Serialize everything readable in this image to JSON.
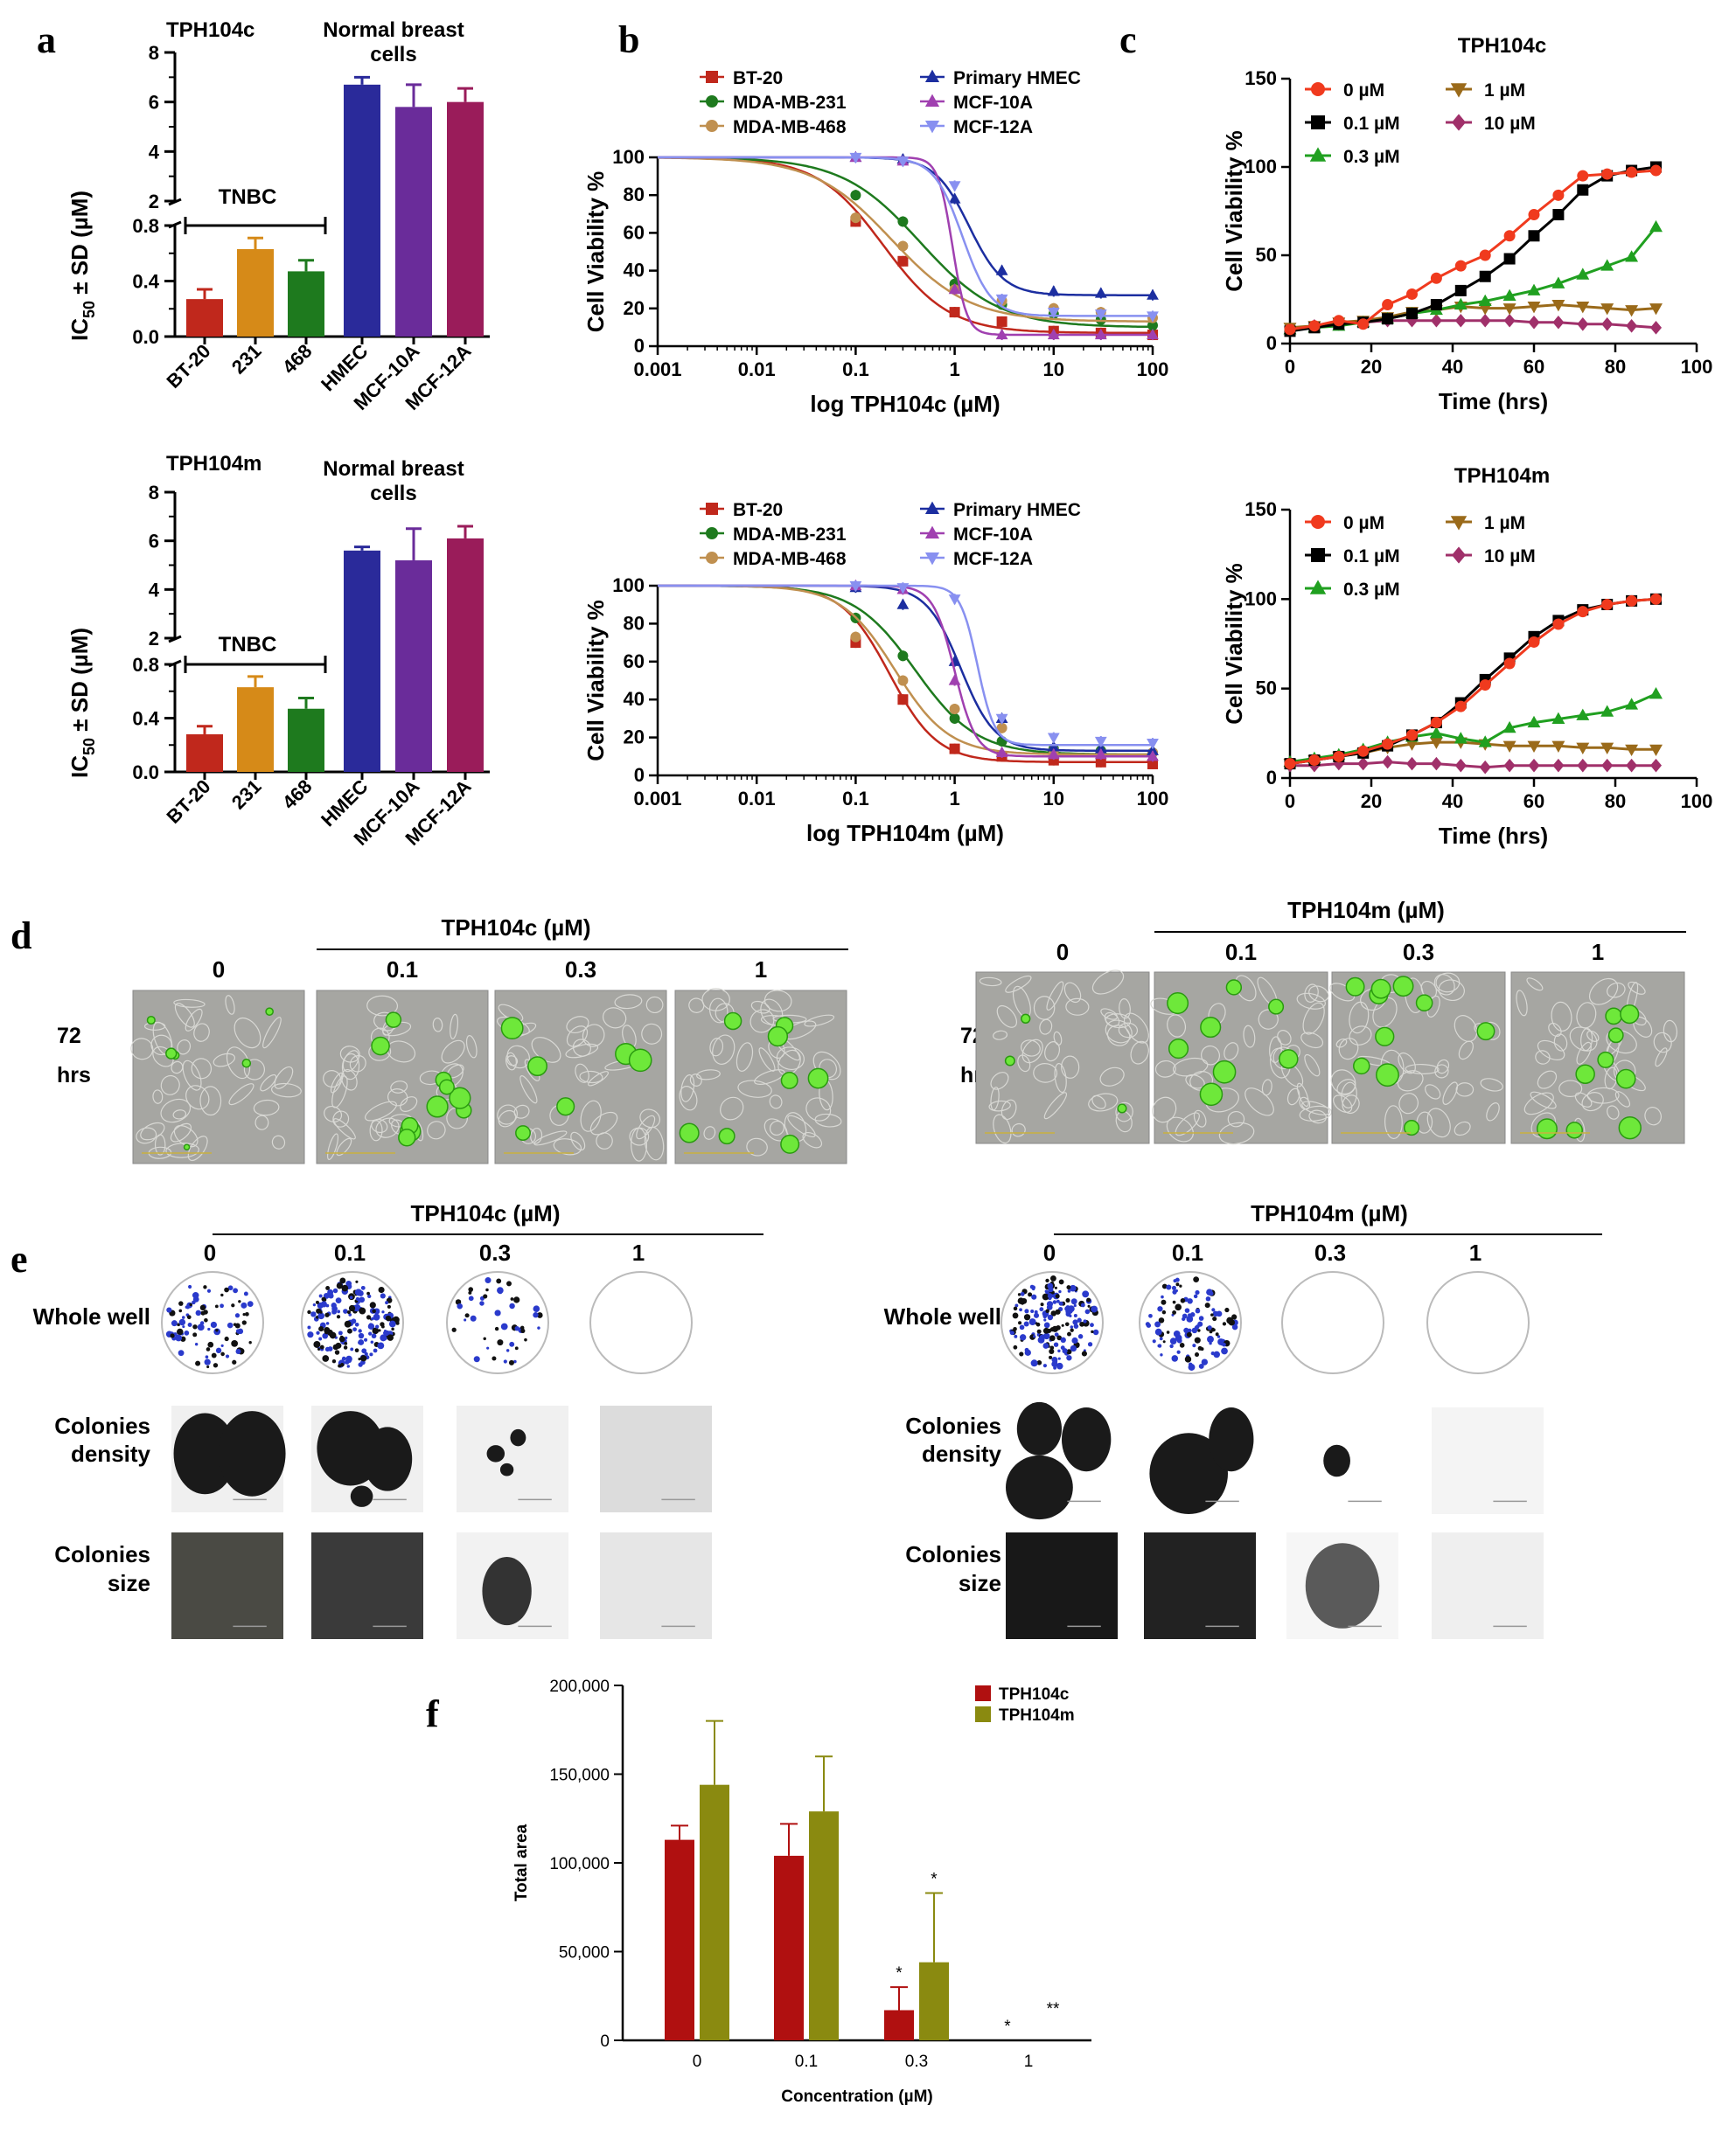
{
  "panels": {
    "a": "a",
    "b": "b",
    "c": "c",
    "d": "d",
    "e": "e",
    "f": "f"
  },
  "panel_a": {
    "ylabel": "IC50 ± SD (µM)",
    "ylabel_main": "IC",
    "ylabel_sub": "50",
    "ylabel_rest": " ± SD (µM)",
    "tnbc_label": "TNBC",
    "normal_label_1": "Normal breast",
    "normal_label_2": "cells"
  },
  "panel_b": {
    "ylabel": "Cell Viability %",
    "series_names": [
      "BT-20",
      "MDA-MB-231",
      "MDA-MB-468",
      "Primary HMEC",
      "MCF-10A",
      "MCF-12A"
    ]
  },
  "panel_c": {
    "ylabel": "Cell Viability %",
    "xlabel": "Time (hrs)",
    "legend": [
      "0 µM",
      "0.1 µM",
      "0.3 µM",
      "1 µM",
      "10 µM"
    ]
  },
  "panel_d": {
    "row_label_1": "72",
    "row_label_2": "hrs",
    "left_title": "TPH104c (µM)",
    "right_title": "TPH104m (µM)",
    "concentrations": [
      "0",
      "0.1",
      "0.3",
      "1"
    ]
  },
  "panel_e": {
    "left_title": "TPH104c (µM)",
    "right_title": "TPH104m (µM)",
    "concentrations": [
      "0",
      "0.1",
      "0.3",
      "1"
    ],
    "row_labels": [
      [
        "Whole well"
      ],
      [
        "Colonies",
        "density"
      ],
      [
        "Colonies",
        "size"
      ]
    ]
  },
  "colors": {
    "bt20": "#c0281c",
    "mda231": "#1e7a1e",
    "mda468": "#c09050",
    "hmec": "#1c2ea0",
    "mcf10a": "#a040b0",
    "mcf12a": "#8890f0",
    "c0": "#f03a1e",
    "c01": "#000000",
    "c03": "#20a020",
    "c1": "#9a6a1a",
    "c10": "#a0306a",
    "tph104c": "#b01010",
    "tph104m": "#8a8a10"
  },
  "chart_data": [
    {
      "id": "a_top",
      "type": "bar",
      "title": "TPH104c",
      "categories": [
        "BT-20",
        "231",
        "468",
        "HMEC",
        "MCF-10A",
        "MCF-12A"
      ],
      "values": [
        0.27,
        0.63,
        0.47,
        6.7,
        5.8,
        6.0
      ],
      "errors": [
        0.07,
        0.08,
        0.08,
        0.3,
        0.9,
        0.55
      ],
      "colors": [
        "#c0281c",
        "#d68a18",
        "#1e7a1e",
        "#2a2a9a",
        "#6a2c9a",
        "#9a1c5a"
      ],
      "ylabel": "IC50 ± SD (µM)",
      "y_axis": "broken",
      "ylim_lower": [
        0,
        0.8
      ],
      "ylim_upper": [
        2,
        8
      ],
      "yticks_lower": [
        "0.0",
        "0.4",
        "0.8"
      ],
      "yticks_lower_extra": [
        "0.2",
        "0.6"
      ],
      "yticks_upper": [
        "2",
        "4",
        "6",
        "8"
      ]
    },
    {
      "id": "a_bottom",
      "type": "bar",
      "title": "TPH104m",
      "categories": [
        "BT-20",
        "231",
        "468",
        "HMEC",
        "MCF-10A",
        "MCF-12A"
      ],
      "values": [
        0.28,
        0.63,
        0.47,
        5.6,
        5.2,
        6.1
      ],
      "errors": [
        0.06,
        0.08,
        0.08,
        0.15,
        1.3,
        0.5
      ],
      "colors": [
        "#c0281c",
        "#d68a18",
        "#1e7a1e",
        "#2a2a9a",
        "#6a2c9a",
        "#9a1c5a"
      ],
      "ylabel": "IC50 ± SD (µM)",
      "y_axis": "broken",
      "ylim_lower": [
        0,
        0.8
      ],
      "ylim_upper": [
        2,
        8
      ],
      "yticks_lower": [
        "0.0",
        "0.4",
        "0.8"
      ],
      "yticks_lower_extra": [
        "0.2",
        "0.6"
      ],
      "yticks_upper": [
        "2",
        "4",
        "6",
        "8"
      ]
    },
    {
      "id": "b_top",
      "type": "line",
      "xscale": "log",
      "xlabel": "log TPH104c (µM)",
      "ylabel": "Cell Viability %",
      "xlim": [
        0.001,
        100
      ],
      "ylim": [
        0,
        100
      ],
      "xticks": [
        "0.001",
        "0.01",
        "0.1",
        "1",
        "10",
        "100"
      ],
      "yticks": [
        "0",
        "20",
        "40",
        "60",
        "80",
        "100"
      ],
      "x": [
        0.1,
        0.3,
        1,
        3,
        10,
        30,
        100
      ],
      "series": [
        {
          "name": "BT-20",
          "ic50": 0.19,
          "hill": 1.3,
          "bottom": 7,
          "marker": "square",
          "values": [
            66,
            45,
            18,
            13,
            8,
            7,
            6
          ]
        },
        {
          "name": "MDA-MB-231",
          "ic50": 0.45,
          "hill": 1.1,
          "bottom": 10,
          "marker": "circle",
          "values": [
            80,
            66,
            33,
            22,
            17,
            14,
            11
          ]
        },
        {
          "name": "MDA-MB-468",
          "ic50": 0.23,
          "hill": 1.1,
          "bottom": 13,
          "marker": "circle",
          "values": [
            68,
            53,
            30,
            24,
            20,
            18,
            15
          ]
        },
        {
          "name": "Primary HMEC",
          "ic50": 1.4,
          "hill": 2.5,
          "bottom": 27,
          "marker": "triangle",
          "values": [
            100,
            99,
            78,
            40,
            29,
            28,
            27
          ]
        },
        {
          "name": "MCF-10A",
          "ic50": 0.95,
          "hill": 6,
          "bottom": 6,
          "marker": "triangle",
          "values": [
            100,
            98,
            30,
            6,
            6,
            6,
            6
          ]
        },
        {
          "name": "MCF-12A",
          "ic50": 1.2,
          "hill": 3,
          "bottom": 16,
          "marker": "triangle-down",
          "values": [
            100,
            98,
            85,
            25,
            18,
            17,
            16
          ]
        }
      ]
    },
    {
      "id": "b_bottom",
      "type": "line",
      "xscale": "log",
      "xlabel": "log TPH104m (µM)",
      "ylabel": "Cell Viability %",
      "xlim": [
        0.001,
        100
      ],
      "ylim": [
        0,
        100
      ],
      "xticks": [
        "0.001",
        "0.01",
        "0.1",
        "1",
        "10",
        "100"
      ],
      "yticks": [
        "0",
        "20",
        "40",
        "60",
        "80",
        "100"
      ],
      "x": [
        0.1,
        0.3,
        1,
        3,
        10,
        30,
        100
      ],
      "series": [
        {
          "name": "BT-20",
          "ic50": 0.22,
          "hill": 1.8,
          "bottom": 7,
          "marker": "square",
          "values": [
            70,
            40,
            14,
            10,
            8,
            7,
            6
          ]
        },
        {
          "name": "MDA-MB-231",
          "ic50": 0.4,
          "hill": 1.4,
          "bottom": 11,
          "marker": "circle",
          "values": [
            83,
            63,
            30,
            18,
            14,
            13,
            12
          ]
        },
        {
          "name": "MDA-MB-468",
          "ic50": 0.25,
          "hill": 1.6,
          "bottom": 11,
          "marker": "circle",
          "values": [
            73,
            50,
            35,
            25,
            13,
            12,
            12
          ]
        },
        {
          "name": "Primary HMEC",
          "ic50": 1.15,
          "hill": 2.5,
          "bottom": 13,
          "marker": "triangle",
          "values": [
            99,
            90,
            60,
            30,
            15,
            14,
            13
          ]
        },
        {
          "name": "MCF-10A",
          "ic50": 1.0,
          "hill": 4,
          "bottom": 10,
          "marker": "triangle",
          "values": [
            100,
            98,
            50,
            12,
            11,
            11,
            10
          ]
        },
        {
          "name": "MCF-12A",
          "ic50": 1.7,
          "hill": 5,
          "bottom": 16,
          "marker": "triangle-down",
          "values": [
            100,
            99,
            93,
            30,
            20,
            18,
            17
          ]
        }
      ]
    },
    {
      "id": "c_top",
      "type": "line",
      "title": "TPH104c",
      "xlabel": "Time (hrs)",
      "ylabel": "Cell Viability %",
      "xlim": [
        0,
        100
      ],
      "ylim": [
        0,
        150
      ],
      "xticks": [
        "0",
        "20",
        "40",
        "60",
        "80",
        "100"
      ],
      "yticks": [
        "0",
        "50",
        "100",
        "150"
      ],
      "x": [
        0,
        6,
        12,
        18,
        24,
        30,
        36,
        42,
        48,
        54,
        60,
        66,
        72,
        78,
        84,
        90
      ],
      "series": [
        {
          "name": "0 µM",
          "marker": "circle",
          "values": [
            8,
            10,
            13,
            11,
            22,
            28,
            37,
            44,
            50,
            61,
            73,
            84,
            95,
            96,
            97,
            98
          ]
        },
        {
          "name": "0.1 µM",
          "marker": "square",
          "values": [
            7,
            9,
            11,
            12,
            14,
            17,
            22,
            30,
            38,
            48,
            61,
            73,
            87,
            95,
            98,
            100
          ]
        },
        {
          "name": "0.3 µM",
          "marker": "triangle",
          "values": [
            8,
            9,
            10,
            12,
            14,
            17,
            19,
            22,
            24,
            27,
            30,
            34,
            39,
            44,
            49,
            66
          ]
        },
        {
          "name": "1 µM",
          "marker": "triangle-down",
          "values": [
            9,
            10,
            12,
            13,
            15,
            18,
            19,
            21,
            20,
            20,
            21,
            22,
            21,
            20,
            19,
            20
          ]
        },
        {
          "name": "10 µM",
          "marker": "diamond",
          "values": [
            8,
            10,
            11,
            12,
            13,
            13,
            13,
            13,
            13,
            13,
            12,
            12,
            11,
            11,
            10,
            9
          ]
        }
      ]
    },
    {
      "id": "c_bottom",
      "type": "line",
      "title": "TPH104m",
      "xlabel": "Time (hrs)",
      "ylabel": "Cell Viability %",
      "xlim": [
        0,
        100
      ],
      "ylim": [
        0,
        150
      ],
      "xticks": [
        "0",
        "20",
        "40",
        "60",
        "80",
        "100"
      ],
      "yticks": [
        "0",
        "50",
        "100",
        "150"
      ],
      "x": [
        0,
        6,
        12,
        18,
        24,
        30,
        36,
        42,
        48,
        54,
        60,
        66,
        72,
        78,
        84,
        90
      ],
      "series": [
        {
          "name": "0 µM",
          "marker": "circle",
          "values": [
            8,
            10,
            12,
            15,
            19,
            24,
            31,
            40,
            52,
            64,
            76,
            86,
            93,
            97,
            99,
            100
          ]
        },
        {
          "name": "0.1 µM",
          "marker": "square",
          "values": [
            8,
            10,
            12,
            14,
            18,
            24,
            31,
            42,
            55,
            67,
            79,
            88,
            94,
            97,
            99,
            100
          ]
        },
        {
          "name": "0.3 µM",
          "marker": "triangle",
          "values": [
            9,
            11,
            13,
            16,
            20,
            23,
            25,
            22,
            20,
            28,
            31,
            33,
            35,
            37,
            41,
            47
          ]
        },
        {
          "name": "1 µM",
          "marker": "triangle-down",
          "values": [
            8,
            10,
            12,
            14,
            17,
            19,
            20,
            20,
            19,
            18,
            18,
            18,
            17,
            17,
            16,
            16
          ]
        },
        {
          "name": "10 µM",
          "marker": "diamond",
          "values": [
            7,
            7,
            8,
            8,
            9,
            8,
            8,
            7,
            6,
            7,
            7,
            7,
            7,
            7,
            7,
            7
          ]
        }
      ]
    },
    {
      "id": "f",
      "type": "bar",
      "categories": [
        "0",
        "0.1",
        "0.3",
        "1"
      ],
      "series": [
        {
          "name": "TPH104c",
          "values": [
            113000,
            104000,
            17000,
            0
          ],
          "errors": [
            8000,
            18000,
            13000,
            0
          ],
          "sig": [
            "",
            "",
            "*",
            "*"
          ]
        },
        {
          "name": "TPH104m",
          "values": [
            144000,
            129000,
            44000,
            0
          ],
          "errors": [
            36000,
            31000,
            39000,
            0
          ],
          "sig": [
            "",
            "",
            "*",
            "**"
          ]
        }
      ],
      "xlabel": "Concentration (µM)",
      "ylabel": "Total area",
      "ylim": [
        0,
        200000
      ],
      "yticks": [
        "0",
        "50,000",
        "100,000",
        "150,000",
        "200,000"
      ]
    }
  ]
}
